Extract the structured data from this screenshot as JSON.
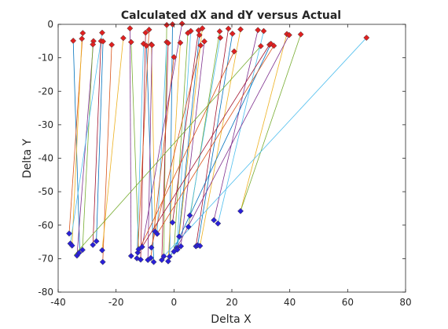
{
  "chart_data": {
    "type": "scatter",
    "title": "Calculated dX and dY versus Actual",
    "xlabel": "Delta X",
    "ylabel": "Delta Y",
    "xlim": [
      -40,
      80
    ],
    "ylim": [
      -80,
      0
    ],
    "xticks": [
      "-40",
      "-20",
      "0",
      "20",
      "40",
      "60",
      "80"
    ],
    "yticks": [
      "0",
      "-10",
      "-20",
      "-30",
      "-40",
      "-50",
      "-60",
      "-70",
      "-80"
    ],
    "grid": false,
    "legend": "none",
    "colors": {
      "calculated_marker": "#e02020",
      "actual_marker": "#2a20d8",
      "line_palette": [
        "#0072bd",
        "#d95319",
        "#edb120",
        "#7e2f8e",
        "#77ac30",
        "#4dbeee",
        "#a2142f"
      ]
    },
    "series": [
      {
        "role": "calculated",
        "marker": "diamond",
        "points": [
          [
            -34.8,
            -4.9
          ],
          [
            -31.5,
            -2.6
          ],
          [
            -31.8,
            -4.3
          ],
          [
            -27.8,
            -5.0
          ],
          [
            -28.0,
            -6.0
          ],
          [
            -24.8,
            -2.5
          ],
          [
            -25.2,
            -5.0
          ],
          [
            -24.5,
            -5.1
          ],
          [
            -21.5,
            -6.1
          ],
          [
            -17.5,
            -4.1
          ],
          [
            -15.2,
            -1.2
          ],
          [
            -14.8,
            -5.3
          ],
          [
            -10.5,
            -5.8
          ],
          [
            -9.8,
            -2.5
          ],
          [
            -9.5,
            -6.4
          ],
          [
            -8.6,
            -1.6
          ],
          [
            -7.8,
            -6.0
          ],
          [
            -7.6,
            -6.2
          ],
          [
            -2.5,
            -0.2
          ],
          [
            -2.5,
            -5.3
          ],
          [
            -2.0,
            -5.6
          ],
          [
            -0.5,
            0.0
          ],
          [
            0.0,
            -9.8
          ],
          [
            2.2,
            -5.5
          ],
          [
            2.8,
            0.2
          ],
          [
            4.8,
            -2.6
          ],
          [
            5.8,
            -2.0
          ],
          [
            8.5,
            -1.8
          ],
          [
            8.8,
            -3.2
          ],
          [
            9.2,
            -6.3
          ],
          [
            9.8,
            -1.2
          ],
          [
            10.5,
            -5.1
          ],
          [
            15.8,
            -2.1
          ],
          [
            16.0,
            -4.0
          ],
          [
            18.8,
            -1.3
          ],
          [
            20.2,
            -2.8
          ],
          [
            20.8,
            -8.1
          ],
          [
            23.0,
            -1.5
          ],
          [
            29.0,
            -1.7
          ],
          [
            30.0,
            -6.5
          ],
          [
            31.0,
            -2.0
          ],
          [
            33.0,
            -6.1
          ],
          [
            33.5,
            -5.8
          ],
          [
            34.5,
            -6.4
          ],
          [
            39.0,
            -2.9
          ],
          [
            39.8,
            -3.2
          ],
          [
            43.8,
            -3.0
          ],
          [
            66.5,
            -4.0
          ]
        ]
      },
      {
        "role": "actual",
        "marker": "diamond",
        "points": [
          [
            -36.2,
            -62.5
          ],
          [
            -35.8,
            -65.5
          ],
          [
            -35.2,
            -66.1
          ],
          [
            -33.5,
            -69.1
          ],
          [
            -32.8,
            -68.3
          ],
          [
            -31.6,
            -67.4
          ],
          [
            -28.0,
            -65.9
          ],
          [
            -26.8,
            -64.8
          ],
          [
            -24.8,
            -67.5
          ],
          [
            -24.6,
            -71.0
          ],
          [
            -14.8,
            -69.2
          ],
          [
            -12.8,
            -69.9
          ],
          [
            -12.5,
            -68.2
          ],
          [
            -12.2,
            -67.2
          ],
          [
            -11.5,
            -70.3
          ],
          [
            -11.0,
            -66.5
          ],
          [
            -9.0,
            -70.4
          ],
          [
            -8.0,
            -69.8
          ],
          [
            -7.8,
            -66.7
          ],
          [
            -7.0,
            -71.0
          ],
          [
            -6.5,
            -61.9
          ],
          [
            -5.8,
            -62.6
          ],
          [
            -4.2,
            -70.4
          ],
          [
            -3.5,
            -69.3
          ],
          [
            -2.0,
            -70.8
          ],
          [
            -1.5,
            -69.4
          ],
          [
            -0.5,
            -59.2
          ],
          [
            0.0,
            -67.9
          ],
          [
            1.0,
            -66.8
          ],
          [
            1.2,
            -67.3
          ],
          [
            1.8,
            -63.4
          ],
          [
            2.4,
            -66.3
          ],
          [
            5.0,
            -60.5
          ],
          [
            5.5,
            -57.1
          ],
          [
            7.6,
            -66.3
          ],
          [
            8.2,
            -66.0
          ],
          [
            9.0,
            -66.2
          ],
          [
            13.8,
            -58.5
          ],
          [
            15.2,
            -59.5
          ],
          [
            23.0,
            -55.8
          ]
        ]
      }
    ],
    "links": [
      [
        [
          -34.8,
          -4.9
        ],
        [
          -32.5,
          -68.7
        ]
      ],
      [
        [
          -31.5,
          -2.6
        ],
        [
          -36.2,
          -62.5
        ]
      ],
      [
        [
          -31.8,
          -4.3
        ],
        [
          -35.2,
          -66.1
        ]
      ],
      [
        [
          -27.8,
          -5.0
        ],
        [
          -33.5,
          -69.1
        ]
      ],
      [
        [
          -28.0,
          -6.0
        ],
        [
          -31.6,
          -67.4
        ]
      ],
      [
        [
          -24.8,
          -2.5
        ],
        [
          -35.8,
          -65.5
        ]
      ],
      [
        [
          -25.2,
          -5.0
        ],
        [
          -28.0,
          -65.9
        ]
      ],
      [
        [
          -24.5,
          -5.1
        ],
        [
          -26.8,
          -64.8
        ]
      ],
      [
        [
          -21.5,
          -6.1
        ],
        [
          -24.6,
          -71.0
        ]
      ],
      [
        [
          -17.5,
          -4.1
        ],
        [
          -24.8,
          -67.5
        ]
      ],
      [
        [
          -15.2,
          -1.2
        ],
        [
          -14.8,
          -69.2
        ]
      ],
      [
        [
          -14.8,
          -5.3
        ],
        [
          -12.2,
          -67.2
        ]
      ],
      [
        [
          -10.5,
          -5.8
        ],
        [
          -12.8,
          -69.9
        ]
      ],
      [
        [
          -9.8,
          -2.5
        ],
        [
          -11.5,
          -70.3
        ]
      ],
      [
        [
          -9.5,
          -6.4
        ],
        [
          -7.0,
          -71.0
        ]
      ],
      [
        [
          -8.6,
          -1.6
        ],
        [
          -12.5,
          -68.2
        ]
      ],
      [
        [
          -7.8,
          -6.0
        ],
        [
          -6.5,
          -61.9
        ]
      ],
      [
        [
          -7.6,
          -6.2
        ],
        [
          -9.0,
          -70.4
        ]
      ],
      [
        [
          -2.5,
          -0.2
        ],
        [
          -3.5,
          -69.3
        ]
      ],
      [
        [
          -2.5,
          -5.3
        ],
        [
          -5.8,
          -62.6
        ]
      ],
      [
        [
          -2.0,
          -5.6
        ],
        [
          -4.2,
          -70.4
        ]
      ],
      [
        [
          -0.5,
          0.0
        ],
        [
          -1.5,
          -69.4
        ]
      ],
      [
        [
          0.0,
          -9.8
        ],
        [
          -8.0,
          -69.8
        ]
      ],
      [
        [
          2.2,
          -5.5
        ],
        [
          -2.0,
          -70.8
        ]
      ],
      [
        [
          2.8,
          0.2
        ],
        [
          -11.0,
          -66.5
        ]
      ],
      [
        [
          4.8,
          -2.6
        ],
        [
          0.0,
          -67.9
        ]
      ],
      [
        [
          5.8,
          -2.0
        ],
        [
          1.0,
          -66.8
        ]
      ],
      [
        [
          8.5,
          -1.8
        ],
        [
          -0.5,
          -59.2
        ]
      ],
      [
        [
          8.8,
          -3.2
        ],
        [
          1.2,
          -67.3
        ]
      ],
      [
        [
          9.2,
          -6.3
        ],
        [
          -7.8,
          -66.7
        ]
      ],
      [
        [
          9.8,
          -1.2
        ],
        [
          1.8,
          -63.4
        ]
      ],
      [
        [
          10.5,
          -5.1
        ],
        [
          2.4,
          -66.3
        ]
      ],
      [
        [
          15.8,
          -2.1
        ],
        [
          5.0,
          -60.5
        ]
      ],
      [
        [
          16.0,
          -4.0
        ],
        [
          5.5,
          -57.1
        ]
      ],
      [
        [
          18.8,
          -1.3
        ],
        [
          7.6,
          -66.3
        ]
      ],
      [
        [
          20.2,
          -2.8
        ],
        [
          8.2,
          -66.0
        ]
      ],
      [
        [
          20.8,
          -8.1
        ],
        [
          -12.5,
          -68.2
        ]
      ],
      [
        [
          23.0,
          -1.5
        ],
        [
          9.0,
          -66.2
        ]
      ],
      [
        [
          29.0,
          -1.7
        ],
        [
          13.8,
          -58.5
        ]
      ],
      [
        [
          30.0,
          -6.5
        ],
        [
          -34.5,
          -69.0
        ]
      ],
      [
        [
          31.0,
          -2.0
        ],
        [
          15.2,
          -59.5
        ]
      ],
      [
        [
          33.0,
          -6.1
        ],
        [
          -11.0,
          -66.5
        ]
      ],
      [
        [
          33.5,
          -5.8
        ],
        [
          -2.0,
          -70.8
        ]
      ],
      [
        [
          34.5,
          -6.4
        ],
        [
          -5.8,
          -62.6
        ]
      ],
      [
        [
          39.0,
          -2.9
        ],
        [
          23.0,
          -55.8
        ]
      ],
      [
        [
          39.8,
          -3.2
        ],
        [
          1.0,
          -66.8
        ]
      ],
      [
        [
          43.8,
          -3.0
        ],
        [
          23.0,
          -55.8
        ]
      ],
      [
        [
          66.5,
          -4.0
        ],
        [
          -3.5,
          -69.3
        ]
      ]
    ]
  }
}
